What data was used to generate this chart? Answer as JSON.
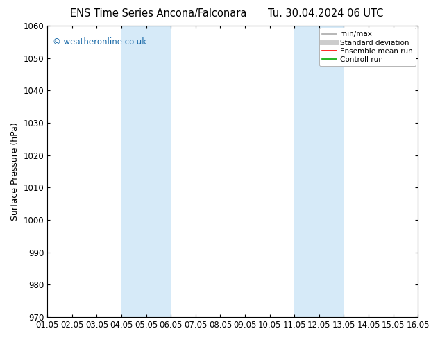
{
  "title_left": "ENS Time Series Ancona/Falconara",
  "title_right": "Tu. 30.04.2024 06 UTC",
  "ylabel": "Surface Pressure (hPa)",
  "ylim": [
    970,
    1060
  ],
  "yticks": [
    970,
    980,
    990,
    1000,
    1010,
    1020,
    1030,
    1040,
    1050,
    1060
  ],
  "xlim_start": 0,
  "xlim_end": 15,
  "xtick_labels": [
    "01.05",
    "02.05",
    "03.05",
    "04.05",
    "05.05",
    "06.05",
    "07.05",
    "08.05",
    "09.05",
    "10.05",
    "11.05",
    "12.05",
    "13.05",
    "14.05",
    "15.05",
    "16.05"
  ],
  "shaded_bands": [
    {
      "xmin": 3.0,
      "xmax": 5.0
    },
    {
      "xmin": 10.0,
      "xmax": 12.0
    }
  ],
  "shade_color": "#d6eaf8",
  "background_color": "#ffffff",
  "watermark": "© weatheronline.co.uk",
  "watermark_color": "#1a6aa8",
  "legend_entries": [
    {
      "label": "min/max",
      "color": "#aaaaaa",
      "lw": 1.2,
      "ls": "-"
    },
    {
      "label": "Standard deviation",
      "color": "#cccccc",
      "lw": 5,
      "ls": "-"
    },
    {
      "label": "Ensemble mean run",
      "color": "#ff0000",
      "lw": 1.2,
      "ls": "-"
    },
    {
      "label": "Controll run",
      "color": "#00aa00",
      "lw": 1.2,
      "ls": "-"
    }
  ],
  "title_fontsize": 10.5,
  "tick_fontsize": 8.5,
  "ylabel_fontsize": 9
}
